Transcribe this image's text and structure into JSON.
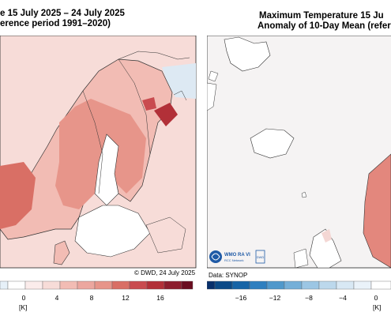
{
  "left_panel": {
    "title_line1": "e 15 July 2025 – 24 July 2025",
    "title_line2": "erence period 1991–2020)",
    "credit": "© DWD, 24 July 2025",
    "colorbar_ticks": [
      "0",
      "4",
      "8",
      "12",
      "16"
    ],
    "unit": "[K]",
    "colors": {
      "ocean": "#ffffff",
      "land_background": "#f7dcd8",
      "warm_light": "#f2bcb4",
      "warm_mid": "#e7958a",
      "warm_strong": "#d96f65",
      "deep_red": "#b23038",
      "cool_light": "#dde9f3"
    }
  },
  "right_panel": {
    "title_line1": "Maximum Temperature 15 Ju",
    "title_line2": "Anomaly of 10-Day Mean (refer",
    "credit": "Data: SYNOP",
    "logo_text": "WMO RA VI",
    "logo_subtext": "RCC Network",
    "logo_badge": "DWD",
    "colorbar_ticks": [
      "−16",
      "−12",
      "−8",
      "−4",
      "0"
    ],
    "unit": "[K]",
    "colors": {
      "ocean": "#f5f3f3",
      "land": "#ffffff",
      "norway_red": "#e3877d",
      "pale_pink": "#f4d7d4",
      "logo_blue": "#1f5aa6"
    }
  }
}
